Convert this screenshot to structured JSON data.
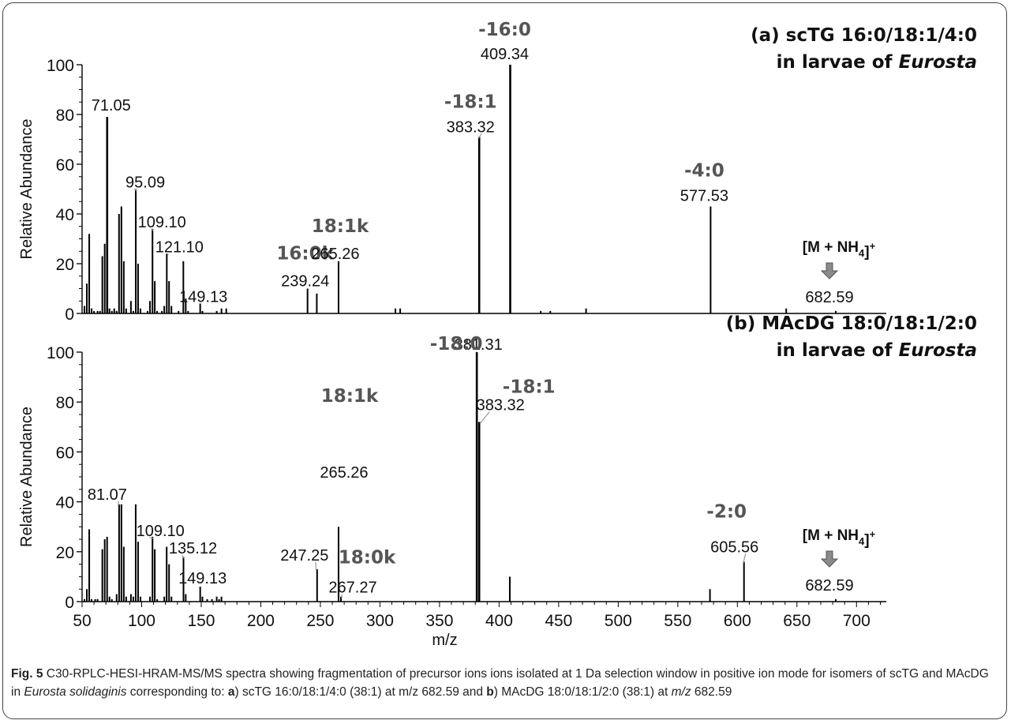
{
  "chart_data": [
    {
      "type": "bar",
      "panel": "a",
      "title_lines": [
        "(a) scTG 16:0/18:1/4:0",
        "in larvae of ",
        "Eurosta"
      ],
      "ylabel": "Relative Abundance",
      "xlabel": "",
      "xlim": [
        50,
        725
      ],
      "ylim": [
        0,
        100
      ],
      "yticks": [
        "0",
        "20",
        "40",
        "60",
        "80",
        "100"
      ],
      "peaks": [
        [
          52,
          3
        ],
        [
          54,
          12
        ],
        [
          56,
          32
        ],
        [
          58,
          2
        ],
        [
          60,
          1
        ],
        [
          63,
          1
        ],
        [
          65,
          1
        ],
        [
          67,
          23
        ],
        [
          69,
          28
        ],
        [
          71.05,
          79
        ],
        [
          73,
          2
        ],
        [
          75,
          1
        ],
        [
          77,
          2
        ],
        [
          79,
          1
        ],
        [
          81,
          40
        ],
        [
          83,
          43
        ],
        [
          85,
          21
        ],
        [
          87,
          2
        ],
        [
          91,
          5
        ],
        [
          93,
          1
        ],
        [
          95.09,
          50
        ],
        [
          97,
          20
        ],
        [
          99,
          2
        ],
        [
          105,
          1
        ],
        [
          107,
          5
        ],
        [
          109.1,
          34
        ],
        [
          111,
          13
        ],
        [
          113,
          1
        ],
        [
          117,
          1
        ],
        [
          119,
          3
        ],
        [
          121.1,
          24
        ],
        [
          123,
          13
        ],
        [
          125,
          3
        ],
        [
          131,
          1
        ],
        [
          135,
          21
        ],
        [
          137,
          6
        ],
        [
          139,
          1
        ],
        [
          149.13,
          4
        ],
        [
          151,
          1
        ],
        [
          163,
          1
        ],
        [
          167,
          2
        ],
        [
          171,
          2
        ],
        [
          239.24,
          10
        ],
        [
          247,
          8
        ],
        [
          265.26,
          21
        ],
        [
          313,
          2
        ],
        [
          317,
          2
        ],
        [
          383.32,
          71
        ],
        [
          409.34,
          100
        ],
        [
          435,
          1
        ],
        [
          443,
          1
        ],
        [
          473,
          2
        ],
        [
          577.53,
          43
        ],
        [
          641,
          2
        ],
        [
          682.59,
          1
        ]
      ],
      "peak_labels": [
        {
          "x": 71.05,
          "text": "71.05"
        },
        {
          "x": 95.09,
          "text": "95.09"
        },
        {
          "x": 109.1,
          "text": "109.10"
        },
        {
          "x": 121.1,
          "text": "121.10"
        },
        {
          "x": 149.13,
          "text": "149.13"
        },
        {
          "x": 239.24,
          "text": "239.24",
          "annotation": "16:0k"
        },
        {
          "x": 265.26,
          "text": "265.26",
          "annotation": "18:1k"
        },
        {
          "x": 383.32,
          "text": "383.32",
          "annotation": "-18:1"
        },
        {
          "x": 409.34,
          "text": "409.34",
          "annotation": "-16:0"
        },
        {
          "x": 577.53,
          "text": "577.53",
          "annotation": "-4:0"
        },
        {
          "x": 682.59,
          "text": "682.59",
          "annotation": "[M + NH4]+"
        }
      ]
    },
    {
      "type": "bar",
      "panel": "b",
      "title_lines": [
        "(b) MAcDG 18:0/18:1/2:0",
        "in larvae of ",
        "Eurosta"
      ],
      "ylabel": "Relative Abundance",
      "xlabel": "m/z",
      "xlim": [
        50,
        725
      ],
      "ylim": [
        0,
        100
      ],
      "yticks": [
        "0",
        "20",
        "40",
        "60",
        "80",
        "100"
      ],
      "xticks": [
        "50",
        "100",
        "150",
        "200",
        "250",
        "300",
        "350",
        "400",
        "450",
        "500",
        "550",
        "600",
        "650",
        "700"
      ],
      "peaks": [
        [
          52,
          1
        ],
        [
          54,
          5
        ],
        [
          56,
          29
        ],
        [
          58,
          1
        ],
        [
          61,
          1
        ],
        [
          63,
          1
        ],
        [
          67,
          21
        ],
        [
          69,
          25
        ],
        [
          71,
          26
        ],
        [
          73,
          2
        ],
        [
          75,
          1
        ],
        [
          79,
          3
        ],
        [
          81.07,
          39
        ],
        [
          83,
          39
        ],
        [
          85,
          22
        ],
        [
          87,
          2
        ],
        [
          91,
          3
        ],
        [
          93,
          2
        ],
        [
          95,
          39
        ],
        [
          97,
          24
        ],
        [
          99,
          2
        ],
        [
          107,
          2
        ],
        [
          109.1,
          26
        ],
        [
          111,
          21
        ],
        [
          113,
          1
        ],
        [
          119,
          2
        ],
        [
          121,
          22
        ],
        [
          123,
          15
        ],
        [
          125,
          2
        ],
        [
          135.12,
          18
        ],
        [
          137,
          3
        ],
        [
          149.13,
          6
        ],
        [
          151,
          2
        ],
        [
          155,
          1
        ],
        [
          159,
          1
        ],
        [
          163,
          2
        ],
        [
          165,
          1
        ],
        [
          167,
          2
        ],
        [
          247.25,
          13
        ],
        [
          265.26,
          30
        ],
        [
          267.27,
          2
        ],
        [
          381.31,
          100
        ],
        [
          383.32,
          72
        ],
        [
          409,
          10
        ],
        [
          577,
          5
        ],
        [
          605.56,
          16
        ],
        [
          682.59,
          1
        ]
      ],
      "peak_labels": [
        {
          "x": 81.07,
          "text": "81.07"
        },
        {
          "x": 109.1,
          "text": "109.10"
        },
        {
          "x": 135.12,
          "text": "135.12"
        },
        {
          "x": 149.13,
          "text": "149.13"
        },
        {
          "x": 247.25,
          "text": "247.25"
        },
        {
          "x": 265.26,
          "text": "265.26",
          "annotation": "18:1k"
        },
        {
          "x": 267.27,
          "text": "267.27",
          "annotation": "18:0k"
        },
        {
          "x": 381.31,
          "text": "381.31",
          "annotation": "-18:0"
        },
        {
          "x": 383.32,
          "text": "383.32",
          "annotation": "-18:1"
        },
        {
          "x": 605.56,
          "text": "605.56",
          "annotation": "-2:0"
        },
        {
          "x": 682.59,
          "text": "682.59",
          "annotation": "[M + NH4]+"
        }
      ]
    }
  ],
  "caption": {
    "fig": "Fig. 5",
    "seg1": " C30-RPLC-HESI-HRAM-MS/MS spectra showing fragmentation of precursor ions ions isolated at 1 Da selection window in positive ion mode for isomers of scTG and MAcDG in ",
    "species": "Eurosta solidaginis",
    "seg2": " corresponding to: ",
    "a": "a",
    "seg3": ") scTG 16:0/18:1/4:0 (38:1) at m/z 682.59 and ",
    "b": "b",
    "seg4": ") MAcDG 18:0/18:1/2:0 (38:1) at ",
    "mz": "m/z",
    "seg5": " 682.59"
  },
  "colors": {
    "stick": "#000000",
    "annotation": "#555555",
    "arrow": "#8a8a8a",
    "axis": "#000000"
  }
}
